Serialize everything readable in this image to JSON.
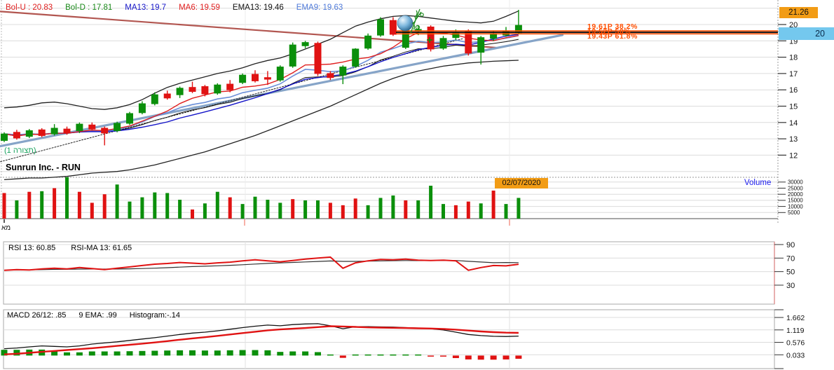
{
  "title": "Sunrun Inc. - RUN",
  "legend": {
    "items": [
      {
        "label": "Bol-U : 20.83",
        "color": "#e02020"
      },
      {
        "label": "Bol-D : 17.81",
        "color": "#1a8a1a"
      },
      {
        "label": "MA13: 19.7",
        "color": "#1414c8"
      },
      {
        "label": "MA6: 19.59",
        "color": "#e02020"
      },
      {
        "label": "EMA13: 19.46",
        "color": "#111111"
      },
      {
        "label": "EMA9: 19.63",
        "color": "#4f7ad9"
      }
    ]
  },
  "badges": {
    "price_high": "21.26",
    "axis_level": "20",
    "date": "02/07/2020"
  },
  "labels": {
    "volume": "Volume",
    "pattern": "(תצורה 1)",
    "bottom_left": "מא"
  },
  "rsi_header": {
    "rsi": "RSI 13: 60.85",
    "rsi_ma": "RSI-MA 13: 61.65",
    "rsi_color": "#f07a60",
    "rsi_ma_color": "#222222"
  },
  "macd_header": {
    "macd": "MACD 26/12: .85",
    "ema": "9 EMA: .99",
    "hist": "Histogram:-.14",
    "macd_color": "#888888",
    "ema_color": "#e02020",
    "hist_color": "#e02020"
  },
  "axes": {
    "price_ticks": [
      "20",
      "19",
      "18",
      "17",
      "16",
      "15",
      "14",
      "13",
      "12"
    ],
    "volume_ticks": [
      "30000",
      "25000",
      "20000",
      "15000",
      "10000",
      "5000"
    ],
    "rsi_ticks": [
      "90",
      "70",
      "50",
      "30"
    ],
    "macd_ticks": [
      "1.662",
      "1.119",
      "0.576",
      "0.033"
    ]
  },
  "chart_data": {
    "type": "candlestick",
    "symbol": "Sunrun Inc. - RUN",
    "price_range": [
      11,
      21.26
    ],
    "colors": {
      "up": "#0b8f0b",
      "down": "#e01212",
      "ma6": "#e02020",
      "ma13": "#1414c8",
      "ema9": "#6b8fd8",
      "ema13": "#111111",
      "band": "#222222",
      "resistance_line": "#b25650",
      "support_line": "#86a4c8",
      "fib_orange": "#ff4e00",
      "rsi_line": "#e01212",
      "rsi_ma_line": "#333333",
      "macd_line": "#111111",
      "signal_line": "#e01212",
      "accent_orange": "#f29c15",
      "accent_blue": "#74c8ee"
    },
    "candles_ohlc": [
      [
        12.9,
        13.4,
        12.8,
        13.3
      ],
      [
        13.4,
        13.55,
        12.95,
        13.05
      ],
      [
        13.15,
        13.6,
        13.05,
        13.5
      ],
      [
        13.55,
        13.65,
        13.1,
        13.2
      ],
      [
        13.3,
        13.9,
        13.2,
        13.65
      ],
      [
        13.6,
        13.75,
        13.25,
        13.35
      ],
      [
        13.5,
        14.0,
        13.35,
        13.9
      ],
      [
        13.85,
        14.0,
        13.5,
        13.6
      ],
      [
        13.65,
        13.75,
        12.6,
        13.35
      ],
      [
        13.5,
        14.05,
        13.4,
        13.95
      ],
      [
        13.95,
        14.65,
        13.85,
        14.55
      ],
      [
        14.6,
        15.3,
        14.5,
        15.15
      ],
      [
        15.15,
        15.85,
        15.05,
        15.7
      ],
      [
        15.75,
        15.95,
        15.4,
        15.5
      ],
      [
        15.7,
        16.2,
        15.5,
        16.1
      ],
      [
        16.15,
        16.5,
        15.8,
        15.9
      ],
      [
        16.2,
        16.3,
        15.6,
        15.75
      ],
      [
        15.8,
        16.4,
        15.7,
        16.3
      ],
      [
        16.35,
        16.6,
        15.85,
        16.0
      ],
      [
        16.45,
        17.0,
        16.35,
        16.9
      ],
      [
        16.95,
        17.2,
        16.45,
        16.55
      ],
      [
        16.75,
        17.15,
        16.3,
        16.65
      ],
      [
        16.6,
        17.5,
        16.5,
        17.4
      ],
      [
        17.45,
        18.9,
        17.35,
        18.75
      ],
      [
        18.7,
        19.0,
        18.55,
        18.9
      ],
      [
        18.85,
        18.95,
        16.85,
        17.0
      ],
      [
        17.0,
        17.15,
        16.6,
        16.75
      ],
      [
        16.9,
        17.5,
        16.35,
        17.4
      ],
      [
        17.45,
        18.55,
        17.35,
        18.5
      ],
      [
        18.55,
        19.45,
        18.45,
        19.3
      ],
      [
        19.35,
        20.45,
        19.25,
        20.3
      ],
      [
        20.25,
        20.45,
        19.3,
        19.4
      ],
      [
        18.6,
        20.0,
        18.5,
        19.9
      ],
      [
        19.6,
        19.95,
        19.35,
        19.7
      ],
      [
        19.85,
        19.95,
        18.35,
        18.5
      ],
      [
        18.55,
        19.3,
        18.45,
        19.15
      ],
      [
        19.2,
        19.7,
        19.05,
        19.5
      ],
      [
        19.6,
        19.7,
        18.1,
        18.25
      ],
      [
        18.3,
        19.3,
        17.55,
        19.2
      ],
      [
        19.15,
        19.6,
        19.0,
        19.45
      ],
      [
        19.35,
        19.85,
        19.25,
        19.6
      ],
      [
        19.5,
        20.9,
        19.4,
        19.95
      ]
    ],
    "volume_thousands": [
      21,
      15,
      22,
      22.5,
      25,
      34,
      22,
      13,
      20,
      28,
      14,
      17.5,
      21.5,
      21,
      15.5,
      7.5,
      12.5,
      22,
      17.5,
      12,
      18,
      15.5,
      13,
      16,
      15,
      15,
      13,
      11,
      16.5,
      11,
      17,
      19,
      15,
      15,
      27,
      12,
      11,
      14,
      12.5,
      23,
      12,
      17
    ],
    "volume_colors": [
      "R",
      "G",
      "R",
      "G",
      "R",
      "G",
      "R",
      "R",
      "R",
      "G",
      "G",
      "G",
      "G",
      "G",
      "G",
      "R",
      "G",
      "G",
      "R",
      "G",
      "G",
      "G",
      "G",
      "R",
      "G",
      "G",
      "R",
      "R",
      "R",
      "G",
      "G",
      "G",
      "R",
      "G",
      "G",
      "G",
      "R",
      "R",
      "G",
      "R",
      "G",
      "G"
    ],
    "boll_upper": [
      14.9,
      14.95,
      15.05,
      15.2,
      15.25,
      15.15,
      15.0,
      14.85,
      14.8,
      14.9,
      15.1,
      15.4,
      15.8,
      16.15,
      16.4,
      16.6,
      16.8,
      17.0,
      17.15,
      17.35,
      17.6,
      17.8,
      17.95,
      18.2,
      18.5,
      18.8,
      19.1,
      19.5,
      19.9,
      20.15,
      20.35,
      20.5,
      20.55,
      20.5,
      20.4,
      20.3,
      20.2,
      20.15,
      20.1,
      20.2,
      20.5,
      20.83
    ],
    "boll_lower": [
      10.5,
      10.55,
      10.6,
      10.6,
      10.65,
      10.7,
      10.8,
      10.9,
      10.95,
      11.0,
      11.1,
      11.25,
      11.4,
      11.6,
      11.8,
      12.0,
      12.2,
      12.45,
      12.7,
      12.95,
      13.2,
      13.5,
      13.8,
      14.1,
      14.4,
      14.7,
      15.0,
      15.35,
      15.7,
      16.05,
      16.4,
      16.7,
      16.95,
      17.15,
      17.3,
      17.45,
      17.55,
      17.65,
      17.7,
      17.75,
      17.78,
      17.81
    ],
    "rsi": [
      52,
      53,
      52.5,
      54,
      55,
      54,
      56,
      54.5,
      53,
      55,
      57,
      59,
      61,
      62,
      63.5,
      62.5,
      61.5,
      63,
      64,
      66,
      67.5,
      66,
      64.5,
      66.5,
      68.5,
      70,
      71.5,
      55,
      63,
      66,
      68,
      67.5,
      68.5,
      67,
      66.5,
      67,
      66,
      52,
      56,
      59,
      58.5,
      60.85
    ],
    "macd": [
      0.3,
      0.33,
      0.38,
      0.42,
      0.4,
      0.38,
      0.42,
      0.5,
      0.55,
      0.6,
      0.66,
      0.72,
      0.78,
      0.85,
      0.92,
      0.98,
      1.02,
      1.08,
      1.15,
      1.22,
      1.28,
      1.33,
      1.3,
      1.35,
      1.38,
      1.39,
      1.3,
      1.17,
      1.26,
      1.26,
      1.25,
      1.24,
      1.22,
      1.2,
      1.17,
      1.12,
      1.02,
      0.92,
      0.87,
      0.84,
      0.83,
      0.85
    ],
    "macd_signal": [
      0.05,
      0.08,
      0.12,
      0.16,
      0.2,
      0.24,
      0.28,
      0.32,
      0.37,
      0.42,
      0.47,
      0.52,
      0.57,
      0.63,
      0.69,
      0.75,
      0.8,
      0.86,
      0.92,
      0.98,
      1.04,
      1.1,
      1.14,
      1.17,
      1.2,
      1.24,
      1.28,
      1.27,
      1.25,
      1.23,
      1.22,
      1.21,
      1.2,
      1.19,
      1.18,
      1.16,
      1.13,
      1.09,
      1.05,
      1.02,
      1.0,
      0.99
    ],
    "fib_levels": [
      {
        "text": "19.61P  38.2%",
        "price": 19.61,
        "color": "#ff4e00",
        "line_color": "#ff4e00"
      },
      {
        "text": "19.52P  50%",
        "price": 19.52,
        "color": "#ff4e00",
        "line_color": "#111111"
      },
      {
        "text": "19.43P  61.8%",
        "price": 19.43,
        "color": "#ff4e00",
        "line_color": "#ff4e00"
      }
    ],
    "trendlines": [
      {
        "name": "resistance",
        "color": "#b25650",
        "width": 2.2,
        "dash": "",
        "from": {
          "i": -0.3,
          "p": 20.8
        },
        "to": {
          "i": 39.3,
          "p": 18.58
        }
      },
      {
        "name": "support",
        "color": "#86a4c8",
        "width": 3.2,
        "dash": "",
        "from": {
          "i": -0.3,
          "p": 12.55
        },
        "to": {
          "i": 44.5,
          "p": 19.36
        }
      },
      {
        "name": "channel",
        "color": "#222222",
        "width": 1,
        "dash": "2,2",
        "from": {
          "i": -0.3,
          "p": 11.6
        },
        "to": {
          "i": 36.6,
          "p": 19.14
        }
      }
    ],
    "rsi_range": [
      30,
      90
    ],
    "macd_range": [
      0.033,
      1.662
    ],
    "volume_range": [
      5000,
      30000
    ]
  }
}
